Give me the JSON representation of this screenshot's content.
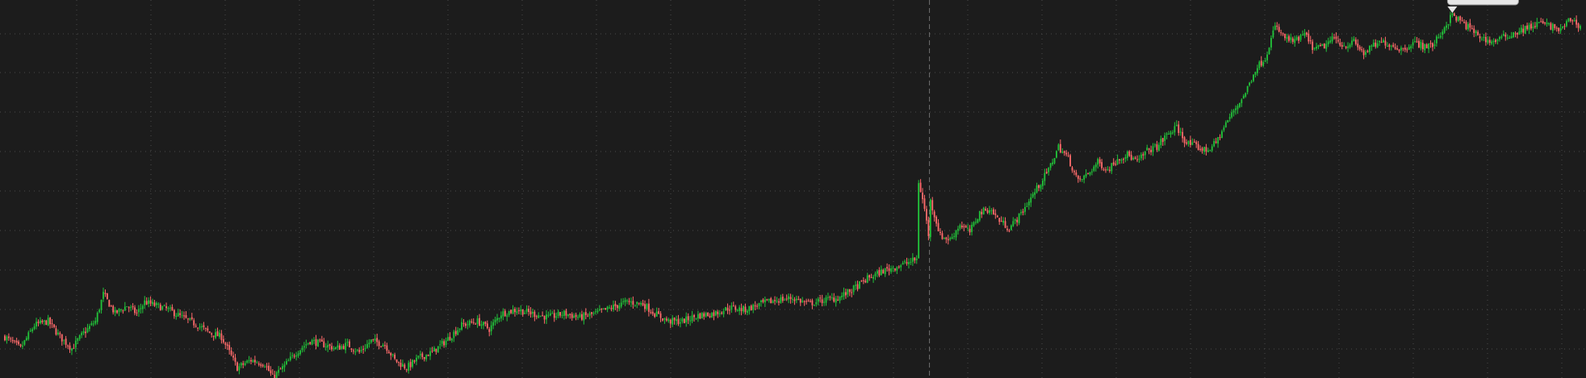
{
  "chart_data": {
    "type": "candlestick",
    "title": "",
    "xlabel": "",
    "ylabel": "",
    "grid": true,
    "background_color": "#1c1c1c",
    "grid_color": "#4a4a4a",
    "up_color": "#22c33a",
    "down_color": "#ff6b6b",
    "ylim": [
      0,
      9.6
    ],
    "num_bars": 490,
    "anchors": [
      [
        0,
        1.0
      ],
      [
        8,
        0.7
      ],
      [
        15,
        1.3
      ],
      [
        22,
        1.4
      ],
      [
        28,
        1.0
      ],
      [
        34,
        0.7
      ],
      [
        40,
        1.1
      ],
      [
        46,
        1.4
      ],
      [
        50,
        2.1
      ],
      [
        56,
        1.6
      ],
      [
        62,
        1.8
      ],
      [
        67,
        1.6
      ],
      [
        71,
        1.9
      ],
      [
        77,
        1.8
      ],
      [
        83,
        1.7
      ],
      [
        90,
        1.5
      ],
      [
        98,
        1.3
      ],
      [
        104,
        1.1
      ],
      [
        110,
        1.0
      ],
      [
        118,
        0.2
      ],
      [
        125,
        0.4
      ],
      [
        132,
        0.3
      ],
      [
        136,
        -0.05
      ],
      [
        142,
        0.25
      ],
      [
        148,
        0.6
      ],
      [
        155,
        0.9
      ],
      [
        162,
        0.8
      ],
      [
        168,
        0.7
      ],
      [
        174,
        0.8
      ],
      [
        180,
        0.6
      ],
      [
        186,
        0.9
      ],
      [
        193,
        0.8
      ],
      [
        198,
        0.4
      ],
      [
        204,
        0.2
      ],
      [
        210,
        0.45
      ],
      [
        217,
        0.6
      ],
      [
        224,
        0.9
      ],
      [
        232,
        1.3
      ],
      [
        240,
        1.4
      ],
      [
        246,
        1.2
      ],
      [
        252,
        1.6
      ],
      [
        260,
        1.7
      ],
      [
        268,
        1.6
      ],
      [
        276,
        1.5
      ],
      [
        284,
        1.6
      ],
      [
        292,
        1.5
      ],
      [
        300,
        1.6
      ],
      [
        308,
        1.75
      ],
      [
        316,
        1.9
      ],
      [
        324,
        1.85
      ],
      [
        330,
        1.6
      ],
      [
        337,
        1.4
      ],
      [
        344,
        1.4
      ],
      [
        352,
        1.55
      ],
      [
        360,
        1.6
      ],
      [
        368,
        1.75
      ],
      [
        376,
        1.7
      ],
      [
        384,
        1.85
      ],
      [
        392,
        1.95
      ],
      [
        400,
        2.0
      ],
      [
        408,
        1.85
      ],
      [
        416,
        1.95
      ],
      [
        423,
        2.0
      ],
      [
        430,
        2.2
      ],
      [
        438,
        2.5
      ],
      [
        446,
        2.7
      ],
      [
        452,
        2.8
      ],
      [
        458,
        2.9
      ],
      [
        463,
        3.0
      ],
      [
        464,
        5.0
      ],
      [
        467,
        4.3
      ],
      [
        470,
        3.3
      ]
    ],
    "anchors_session2": [
      [
        0,
        4.5
      ],
      [
        5,
        3.6
      ],
      [
        10,
        3.5
      ],
      [
        15,
        3.9
      ],
      [
        20,
        3.7
      ],
      [
        25,
        4.2
      ],
      [
        30,
        4.3
      ],
      [
        35,
        4.0
      ],
      [
        40,
        3.8
      ],
      [
        45,
        4.1
      ],
      [
        50,
        4.5
      ],
      [
        55,
        4.9
      ],
      [
        60,
        5.3
      ],
      [
        65,
        5.9
      ],
      [
        70,
        5.6
      ],
      [
        75,
        5.0
      ],
      [
        80,
        5.2
      ],
      [
        85,
        5.5
      ],
      [
        90,
        5.3
      ],
      [
        95,
        5.6
      ],
      [
        100,
        5.7
      ],
      [
        105,
        5.5
      ],
      [
        110,
        5.8
      ],
      [
        115,
        5.9
      ],
      [
        120,
        6.2
      ],
      [
        125,
        6.4
      ],
      [
        130,
        6.0
      ],
      [
        135,
        5.9
      ],
      [
        140,
        5.8
      ],
      [
        145,
        6.0
      ],
      [
        150,
        6.5
      ],
      [
        155,
        6.9
      ],
      [
        160,
        7.3
      ],
      [
        165,
        7.9
      ],
      [
        170,
        8.2
      ],
      [
        175,
        9.0
      ],
      [
        180,
        8.7
      ],
      [
        185,
        8.6
      ],
      [
        190,
        8.8
      ],
      [
        195,
        8.4
      ],
      [
        200,
        8.5
      ],
      [
        205,
        8.7
      ],
      [
        210,
        8.5
      ],
      [
        215,
        8.6
      ],
      [
        220,
        8.3
      ],
      [
        225,
        8.5
      ],
      [
        230,
        8.6
      ],
      [
        235,
        8.5
      ],
      [
        240,
        8.4
      ],
      [
        245,
        8.6
      ],
      [
        250,
        8.5
      ],
      [
        255,
        8.5
      ],
      [
        260,
        8.9
      ],
      [
        265,
        9.3
      ],
      [
        270,
        9.1
      ],
      [
        275,
        8.9
      ],
      [
        280,
        8.7
      ],
      [
        285,
        8.6
      ],
      [
        290,
        8.7
      ],
      [
        295,
        8.8
      ],
      [
        300,
        8.9
      ],
      [
        305,
        9.0
      ],
      [
        310,
        9.1
      ],
      [
        315,
        9.0
      ],
      [
        320,
        8.9
      ],
      [
        325,
        9.2
      ],
      [
        330,
        9.0
      ]
    ],
    "session_break_after_bar": 470,
    "high_marker": {
      "bar_index": 735,
      "value": 9.35,
      "label": ""
    }
  }
}
